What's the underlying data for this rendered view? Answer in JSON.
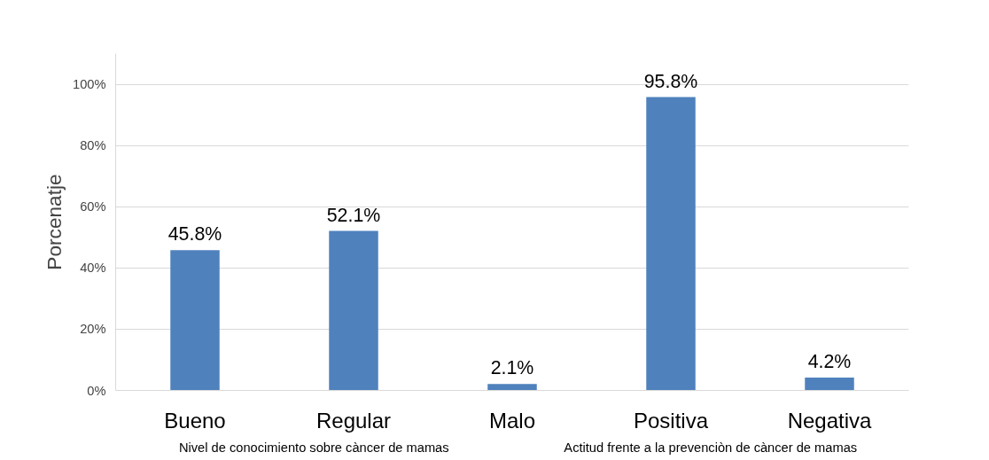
{
  "chart_data": {
    "type": "bar",
    "categories": [
      "Bueno",
      "Regular",
      "Malo",
      "Positiva",
      "Negativa"
    ],
    "values": [
      45.8,
      52.1,
      2.1,
      95.8,
      4.2
    ],
    "color": "#4f81bd",
    "value_labels": [
      "45.8%",
      "52.1%",
      "2.1%",
      "95.8%",
      "4.2%"
    ],
    "ylabel": "Porcenatje",
    "ylim": [
      0,
      110
    ],
    "yticks": [
      {
        "value": 0,
        "label": "0%"
      },
      {
        "value": 20,
        "label": "20%"
      },
      {
        "value": 40,
        "label": "40%"
      },
      {
        "value": 60,
        "label": "60%"
      },
      {
        "value": 80,
        "label": "80%"
      },
      {
        "value": 100,
        "label": "100%"
      }
    ],
    "grid": "y",
    "annotations": [
      "Nivel de conocimiento sobre càncer de mamas",
      "Actitud frente a la prevenciòn de càncer de mamas"
    ]
  }
}
